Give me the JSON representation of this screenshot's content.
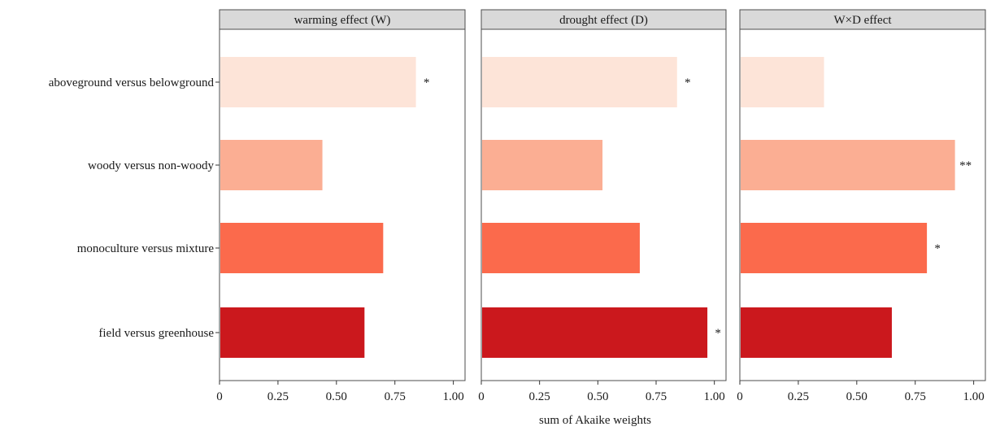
{
  "chart_data": {
    "type": "bar",
    "orientation": "horizontal",
    "xlabel": "sum of Akaike weights",
    "categories": [
      "aboveground versus belowground",
      "woody versus non-woody",
      "monoculture versus mixture",
      "field versus greenhouse"
    ],
    "bar_colors": [
      "#fde4d8",
      "#fbae93",
      "#fb6a4c",
      "#cb181d"
    ],
    "xlim": [
      0,
      1.05
    ],
    "xticks": [
      0,
      0.25,
      0.5,
      0.75,
      1.0
    ],
    "xtick_labels": [
      "0",
      "0.25",
      "0.50",
      "0.75",
      "1.00"
    ],
    "grid": false,
    "panels": [
      {
        "title": "warming effect (W)",
        "values": [
          0.84,
          0.44,
          0.7,
          0.62
        ],
        "significance": [
          "*",
          "",
          "",
          ""
        ]
      },
      {
        "title": "drought effect (D)",
        "values": [
          0.84,
          0.52,
          0.68,
          0.97
        ],
        "significance": [
          "*",
          "",
          "",
          "*"
        ]
      },
      {
        "title": "W×D effect",
        "values": [
          0.36,
          0.92,
          0.8,
          0.65
        ],
        "significance": [
          "",
          "**",
          "*",
          ""
        ]
      }
    ]
  }
}
